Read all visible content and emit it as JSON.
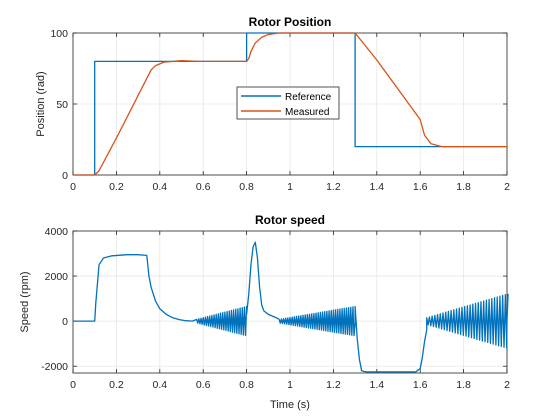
{
  "chart_data": [
    {
      "type": "line",
      "title": "Rotor Position",
      "xlabel": "",
      "ylabel": "Position (rad)",
      "xlim": [
        0,
        2
      ],
      "ylim": [
        0,
        100
      ],
      "xticks": [
        0,
        0.2,
        0.4,
        0.6,
        0.8,
        1,
        1.2,
        1.4,
        1.6,
        1.8,
        2
      ],
      "xtick_labels": [
        "0",
        "0.2",
        "0.4",
        "0.6",
        "0.8",
        "1",
        "1.2",
        "1.4",
        "1.6",
        "1.8",
        "2"
      ],
      "yticks": [
        0,
        50,
        100
      ],
      "ytick_labels": [
        "0",
        "50",
        "100"
      ],
      "grid": true,
      "legend": {
        "position": "center",
        "entries": [
          "Reference",
          "Measured"
        ]
      },
      "series": [
        {
          "name": "Reference",
          "color": "#0072BD",
          "x": [
            0,
            0.1,
            0.1,
            0.8,
            0.8,
            1.3,
            1.3,
            2.0
          ],
          "y": [
            0,
            0,
            80,
            80,
            100,
            100,
            20,
            20
          ]
        },
        {
          "name": "Measured",
          "color": "#D95319",
          "x": [
            0,
            0.1,
            0.12,
            0.2,
            0.3,
            0.34,
            0.36,
            0.38,
            0.42,
            0.5,
            0.58,
            0.6,
            0.8,
            0.81,
            0.82,
            0.84,
            0.87,
            0.9,
            0.95,
            1.0,
            1.3,
            1.4,
            1.5,
            1.6,
            1.62,
            1.65,
            1.7,
            1.8,
            1.9,
            2.0
          ],
          "y": [
            0,
            0,
            3,
            26,
            56,
            68,
            74,
            77,
            79.5,
            80.5,
            80,
            80,
            80,
            82,
            87,
            93,
            97,
            99,
            100,
            100,
            100,
            81,
            60,
            39,
            28,
            22,
            20,
            20,
            20,
            20
          ]
        }
      ]
    },
    {
      "type": "line",
      "title": "Rotor speed",
      "xlabel": "Time (s)",
      "ylabel": "Speed (rpm)",
      "xlim": [
        0,
        2
      ],
      "ylim": [
        -2300,
        4000
      ],
      "xticks": [
        0,
        0.2,
        0.4,
        0.6,
        0.8,
        1,
        1.2,
        1.4,
        1.6,
        1.8,
        2
      ],
      "xtick_labels": [
        "0",
        "0.2",
        "0.4",
        "0.6",
        "0.8",
        "1",
        "1.2",
        "1.4",
        "1.6",
        "1.8",
        "2"
      ],
      "yticks": [
        -2000,
        0,
        2000,
        4000
      ],
      "ytick_labels": [
        "-2000",
        "0",
        "2000",
        "4000"
      ],
      "grid": true,
      "series": [
        {
          "color": "#0072BD",
          "x": [
            0,
            0.1,
            0.105,
            0.12,
            0.14,
            0.18,
            0.25,
            0.3,
            0.34,
            0.35,
            0.36,
            0.38,
            0.4,
            0.43,
            0.46,
            0.49,
            0.52,
            0.55,
            0.6,
            0.7,
            0.78,
            0.8,
            0.81,
            0.82,
            0.83,
            0.84,
            0.85,
            0.86,
            0.87,
            0.88,
            0.9,
            0.93,
            0.96,
            1.0,
            1.05,
            1.1,
            1.2,
            1.29,
            1.3,
            1.31,
            1.32,
            1.33,
            1.35,
            1.5,
            1.58,
            1.6,
            1.61,
            1.62,
            1.63,
            1.65,
            1.7,
            1.8,
            1.9,
            2.0
          ],
          "y": [
            0,
            0,
            800,
            2500,
            2800,
            2900,
            2950,
            2950,
            2920,
            2000,
            1500,
            900,
            550,
            300,
            150,
            70,
            20,
            0,
            0,
            0,
            0,
            300,
            1200,
            2500,
            3300,
            3500,
            2800,
            1500,
            700,
            450,
            300,
            180,
            100,
            0,
            0,
            0,
            0,
            0,
            -100,
            -800,
            -1700,
            -2200,
            -2250,
            -2250,
            -2250,
            -2100,
            -1600,
            -900,
            -400,
            -50,
            0,
            0,
            0,
            0
          ]
        }
      ],
      "oscillations": [
        {
          "x_start": 0.57,
          "x_end": 0.8,
          "amp_start": 80,
          "amp_end": 650,
          "period": 0.01
        },
        {
          "x_start": 0.95,
          "x_end": 1.3,
          "amp_start": 80,
          "amp_end": 650,
          "period": 0.01
        },
        {
          "x_start": 1.63,
          "x_end": 2.0,
          "amp_start": 150,
          "amp_end": 1200,
          "period": 0.0125
        }
      ]
    }
  ]
}
